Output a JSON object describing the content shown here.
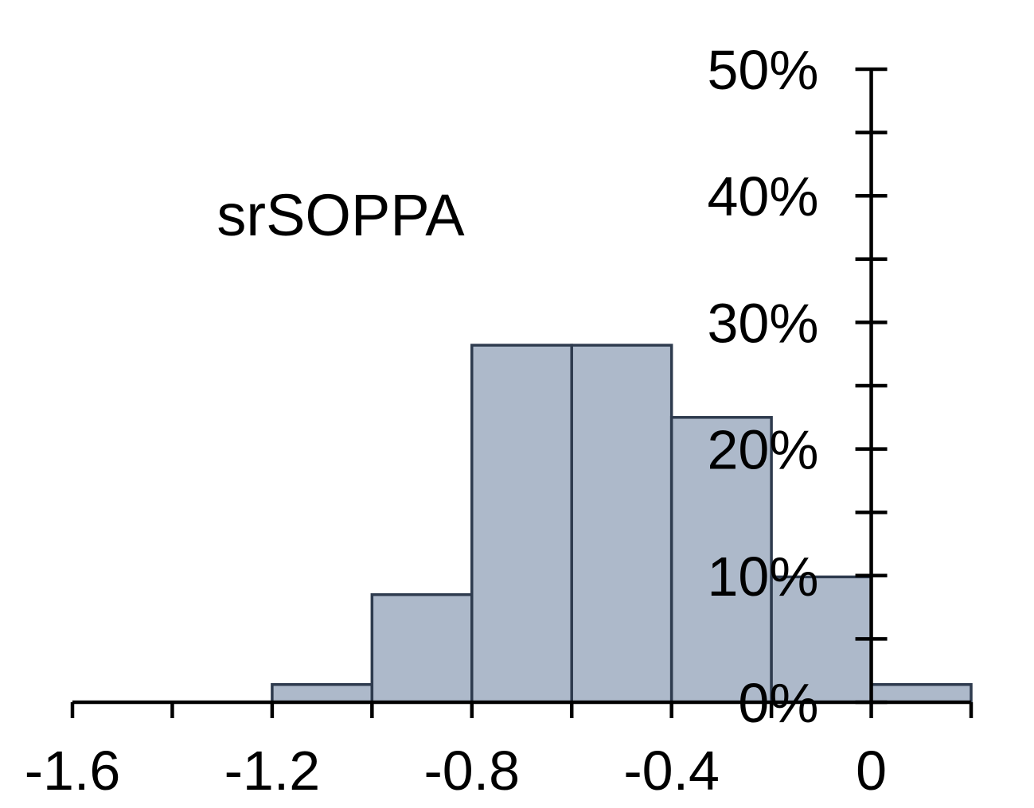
{
  "chart_data": {
    "type": "bar",
    "title": "srSOPPA",
    "xlabel": "",
    "ylabel": "",
    "bins": [
      {
        "x0": -1.6,
        "x1": -1.4,
        "value": 0
      },
      {
        "x0": -1.4,
        "x1": -1.2,
        "value": 0
      },
      {
        "x0": -1.2,
        "x1": -1.0,
        "value": 1.4
      },
      {
        "x0": -1.0,
        "x1": -0.8,
        "value": 8.5
      },
      {
        "x0": -0.8,
        "x1": -0.6,
        "value": 28.2
      },
      {
        "x0": -0.6,
        "x1": -0.4,
        "value": 28.2
      },
      {
        "x0": -0.4,
        "x1": -0.2,
        "value": 22.5
      },
      {
        "x0": -0.2,
        "x1": 0.0,
        "value": 9.9
      },
      {
        "x0": 0.0,
        "x1": 0.2,
        "value": 1.4
      }
    ],
    "xlim": [
      -1.6,
      0.2
    ],
    "ylim": [
      0,
      50
    ],
    "x_ticks": [
      -1.6,
      -1.2,
      -0.8,
      -0.4,
      0
    ],
    "x_tick_labels": [
      "-1.6",
      "-1.2",
      "-0.8",
      "-0.4",
      "0"
    ],
    "y_ticks": [
      0,
      10,
      20,
      30,
      40,
      50
    ],
    "y_tick_labels": [
      "0%",
      "10%",
      "20%",
      "30%",
      "40%",
      "50%"
    ],
    "y_axis_at_x": 0,
    "grid": false,
    "legend": "none",
    "bar_fill": "#adb9ca",
    "bar_edge": "#2e3b4e",
    "axis_color": "#000000"
  }
}
